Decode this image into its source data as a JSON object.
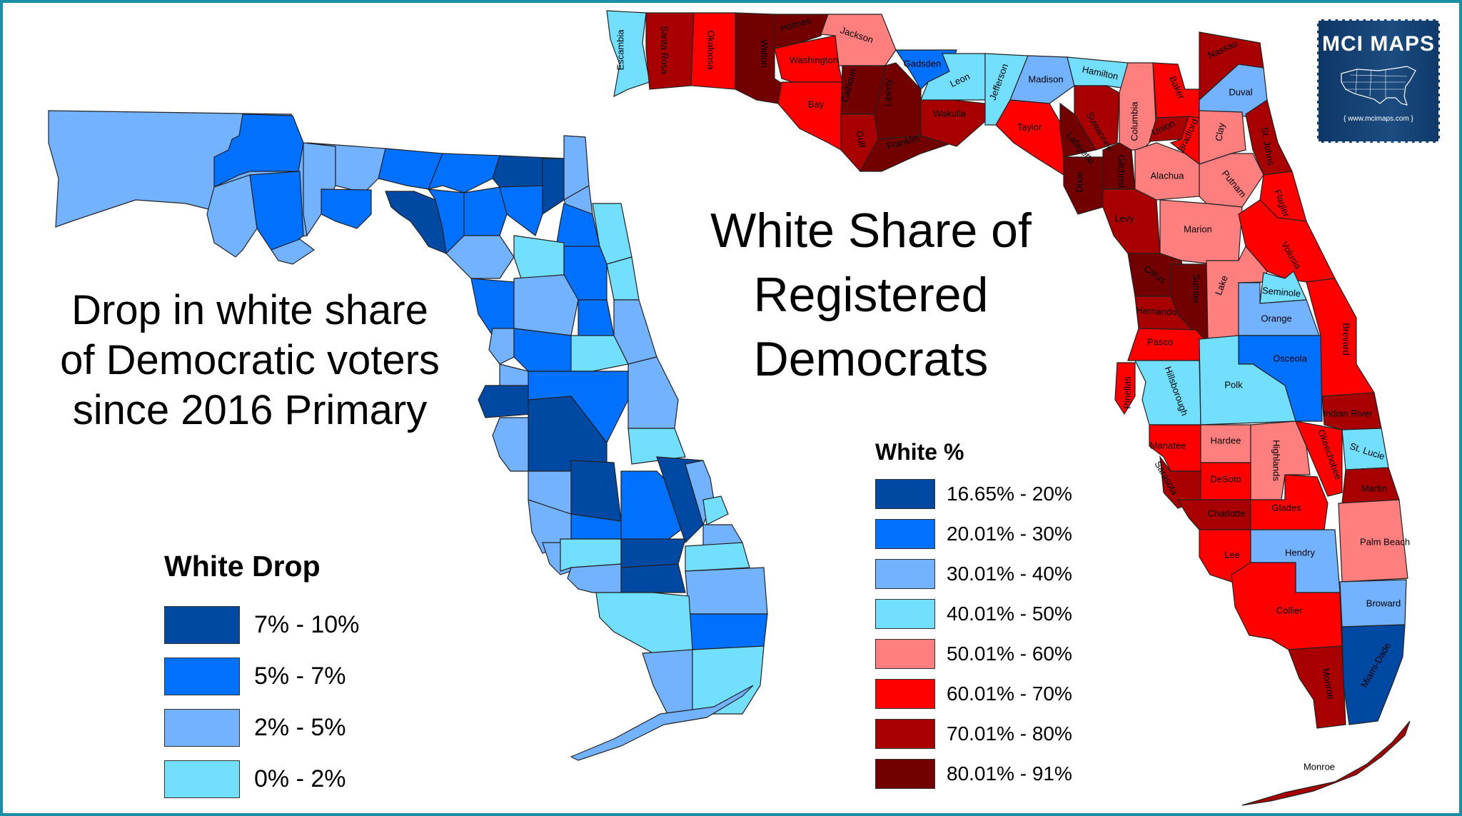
{
  "left_map": {
    "title": "Drop in white share of Democratic voters since 2016 Primary",
    "title_lines": [
      "Drop in white share",
      "of Democratic voters",
      "since 2016 Primary"
    ],
    "legend": {
      "title": "White Drop",
      "items": [
        {
          "label": "7% - 10%",
          "color": "#0049a3"
        },
        {
          "label": "5% - 7%",
          "color": "#0070ff"
        },
        {
          "label": "2% - 5%",
          "color": "#73b2ff"
        },
        {
          "label": "0% - 2%",
          "color": "#73dfff"
        }
      ]
    }
  },
  "right_map": {
    "title_lines": [
      "White Share of",
      "Registered",
      "Democrats"
    ],
    "legend": {
      "title": "White %",
      "items": [
        {
          "label": "16.65% - 20%",
          "color": "#0049a3"
        },
        {
          "label": "20.01% - 30%",
          "color": "#0070ff"
        },
        {
          "label": "30.01% - 40%",
          "color": "#73b2ff"
        },
        {
          "label": "40.01% - 50%",
          "color": "#73dfff"
        },
        {
          "label": "50.01% - 60%",
          "color": "#ff7f7f"
        },
        {
          "label": "60.01% - 70%",
          "color": "#ff0000"
        },
        {
          "label": "70.01% - 80%",
          "color": "#a80000"
        },
        {
          "label": "80.01% - 91%",
          "color": "#730000"
        }
      ]
    },
    "counties": [
      {
        "name": "Escambia",
        "bin": 3,
        "label": [
          870,
          70
        ],
        "rot": -90
      },
      {
        "name": "Santa Rosa",
        "bin": 6,
        "label": [
          930,
          70
        ],
        "rot": 90
      },
      {
        "name": "Okaloosa",
        "bin": 5,
        "label": [
          995,
          70
        ],
        "rot": 90
      },
      {
        "name": "Walton",
        "bin": 7,
        "label": [
          1070,
          75
        ],
        "rot": 90
      },
      {
        "name": "Holmes",
        "bin": 7,
        "label": [
          1115,
          35
        ],
        "rot": -15
      },
      {
        "name": "Jackson",
        "bin": 4,
        "label": [
          1200,
          50
        ],
        "rot": 18
      },
      {
        "name": "Washington",
        "bin": 5,
        "label": [
          1140,
          85
        ],
        "rot": 0
      },
      {
        "name": "Bay",
        "bin": 5,
        "label": [
          1143,
          147
        ],
        "rot": 0
      },
      {
        "name": "Calhoun",
        "bin": 7,
        "label": [
          1190,
          120
        ],
        "rot": -75
      },
      {
        "name": "Gulf",
        "bin": 6,
        "label": [
          1205,
          195
        ],
        "rot": 80
      },
      {
        "name": "Liberty",
        "bin": 7,
        "label": [
          1245,
          130
        ],
        "rot": -90
      },
      {
        "name": "Franklin",
        "bin": 7,
        "label": [
          1265,
          200
        ],
        "rot": -15
      },
      {
        "name": "Gadsden",
        "bin": 1,
        "label": [
          1292,
          90
        ],
        "rot": 0
      },
      {
        "name": "Wakulla",
        "bin": 6,
        "label": [
          1330,
          160
        ],
        "rot": 0
      },
      {
        "name": "Leon",
        "bin": 3,
        "label": [
          1345,
          113
        ],
        "rot": -25
      },
      {
        "name": "Jefferson",
        "bin": 3,
        "label": [
          1400,
          115
        ],
        "rot": -70
      },
      {
        "name": "Madison",
        "bin": 2,
        "label": [
          1465,
          112
        ],
        "rot": 0
      },
      {
        "name": "Taylor",
        "bin": 5,
        "label": [
          1442,
          179
        ],
        "rot": 0
      },
      {
        "name": "Hamilton",
        "bin": 3,
        "label": [
          1541,
          103
        ],
        "rot": 12
      },
      {
        "name": "Suwannee",
        "bin": 6,
        "label": [
          1540,
          185
        ],
        "rot": 60
      },
      {
        "name": "Lafayette",
        "bin": 7,
        "label": [
          1513,
          208
        ],
        "rot": 50
      },
      {
        "name": "Dixie",
        "bin": 7,
        "label": [
          1513,
          255
        ],
        "rot": -90
      },
      {
        "name": "Gilchrist",
        "bin": 7,
        "label": [
          1570,
          240
        ],
        "rot": 90
      },
      {
        "name": "Columbia",
        "bin": 4,
        "label": [
          1590,
          170
        ],
        "rot": -90
      },
      {
        "name": "Baker",
        "bin": 5,
        "label": [
          1648,
          123
        ],
        "rot": 65
      },
      {
        "name": "Union",
        "bin": 6,
        "label": [
          1630,
          180
        ],
        "rot": -25
      },
      {
        "name": "Bradford",
        "bin": 5,
        "label": [
          1665,
          190
        ],
        "rot": -65
      },
      {
        "name": "Nassau",
        "bin": 6,
        "label": [
          1713,
          70
        ],
        "rot": -25
      },
      {
        "name": "Duval",
        "bin": 2,
        "label": [
          1738,
          130
        ],
        "rot": 0
      },
      {
        "name": "Clay",
        "bin": 4,
        "label": [
          1710,
          185
        ],
        "rot": -80
      },
      {
        "name": "St. Johns",
        "bin": 6,
        "label": [
          1775,
          205
        ],
        "rot": 80
      },
      {
        "name": "Alachua",
        "bin": 4,
        "label": [
          1635,
          247
        ],
        "rot": 0
      },
      {
        "name": "Putnam",
        "bin": 4,
        "label": [
          1728,
          258
        ],
        "rot": 50
      },
      {
        "name": "Flagler",
        "bin": 5,
        "label": [
          1795,
          285
        ],
        "rot": 70
      },
      {
        "name": "Levy",
        "bin": 6,
        "label": [
          1575,
          307
        ],
        "rot": 0
      },
      {
        "name": "Marion",
        "bin": 4,
        "label": [
          1678,
          322
        ],
        "rot": 0
      },
      {
        "name": "Volusia",
        "bin": 5,
        "label": [
          1808,
          358
        ],
        "rot": 60
      },
      {
        "name": "Citrus",
        "bin": 7,
        "label": [
          1617,
          385
        ],
        "rot": 35
      },
      {
        "name": "Sumter",
        "bin": 7,
        "label": [
          1675,
          405
        ],
        "rot": 90
      },
      {
        "name": "Lake",
        "bin": 4,
        "label": [
          1712,
          400
        ],
        "rot": -70
      },
      {
        "name": "Seminole",
        "bin": 3,
        "label": [
          1795,
          410
        ],
        "rot": 5
      },
      {
        "name": "Hernando",
        "bin": 6,
        "label": [
          1620,
          437
        ],
        "rot": 3
      },
      {
        "name": "Orange",
        "bin": 2,
        "label": [
          1788,
          447
        ],
        "rot": 0
      },
      {
        "name": "Brevard",
        "bin": 5,
        "label": [
          1885,
          475
        ],
        "rot": 90
      },
      {
        "name": "Pasco",
        "bin": 5,
        "label": [
          1625,
          480
        ],
        "rot": 0
      },
      {
        "name": "Osceola",
        "bin": 1,
        "label": [
          1807,
          503
        ],
        "rot": 0
      },
      {
        "name": "Pinellas",
        "bin": 5,
        "label": [
          1580,
          550
        ],
        "rot": -90
      },
      {
        "name": "Hillsborough",
        "bin": 3,
        "label": [
          1647,
          548
        ],
        "rot": 70
      },
      {
        "name": "Polk",
        "bin": 3,
        "label": [
          1728,
          540
        ],
        "rot": 0
      },
      {
        "name": "Indian River",
        "bin": 6,
        "label": [
          1888,
          580
        ],
        "rot": 0
      },
      {
        "name": "Manatee",
        "bin": 5,
        "label": [
          1636,
          625
        ],
        "rot": 0
      },
      {
        "name": "Hardee",
        "bin": 4,
        "label": [
          1717,
          618
        ],
        "rot": 0
      },
      {
        "name": "Highlands",
        "bin": 4,
        "label": [
          1787,
          645
        ],
        "rot": 90
      },
      {
        "name": "Okeechobee",
        "bin": 5,
        "label": [
          1862,
          637
        ],
        "rot": 70
      },
      {
        "name": "St. Lucie",
        "bin": 3,
        "label": [
          1915,
          633
        ],
        "rot": 18
      },
      {
        "name": "Sarasota",
        "bin": 6,
        "label": [
          1633,
          670
        ],
        "rot": 60
      },
      {
        "name": "DeSoto",
        "bin": 5,
        "label": [
          1717,
          672
        ],
        "rot": 0
      },
      {
        "name": "Martin",
        "bin": 6,
        "label": [
          1925,
          685
        ],
        "rot": 0
      },
      {
        "name": "Charlotte",
        "bin": 6,
        "label": [
          1718,
          720
        ],
        "rot": 0
      },
      {
        "name": "Glades",
        "bin": 5,
        "label": [
          1802,
          712
        ],
        "rot": 0
      },
      {
        "name": "Palm Beach",
        "bin": 4,
        "label": [
          1940,
          760
        ],
        "rot": 0
      },
      {
        "name": "Lee",
        "bin": 5,
        "label": [
          1726,
          778
        ],
        "rot": 0
      },
      {
        "name": "Hendry",
        "bin": 2,
        "label": [
          1821,
          775
        ],
        "rot": 0
      },
      {
        "name": "Broward",
        "bin": 2,
        "label": [
          1938,
          846
        ],
        "rot": 0
      },
      {
        "name": "Collier",
        "bin": 5,
        "label": [
          1806,
          856
        ],
        "rot": 0
      },
      {
        "name": "Miami-Dade",
        "bin": 0,
        "label": [
          1928,
          932
        ],
        "rot": -60
      },
      {
        "name": "Monroe",
        "bin": 6,
        "label": [
          1860,
          958
        ],
        "rot": 80
      },
      {
        "name": "Monroe",
        "bin": 6,
        "label": [
          1848,
          1075
        ],
        "rot": 0,
        "keys": true
      }
    ]
  },
  "logo": {
    "brand": "MCI MAPS",
    "url": "{ www.mcimaps.com }"
  },
  "chart_data": [
    {
      "type": "choropleth",
      "title": "Drop in white share of Democratic voters since 2016 Primary",
      "legend_title": "White Drop",
      "bins": [
        "7% - 10%",
        "5% - 7%",
        "2% - 5%",
        "0% - 2%"
      ]
    },
    {
      "type": "choropleth",
      "title": "White Share of Registered Democrats",
      "legend_title": "White %",
      "bins": [
        "16.65% - 20%",
        "20.01% - 30%",
        "30.01% - 40%",
        "40.01% - 50%",
        "50.01% - 60%",
        "60.01% - 70%",
        "70.01% - 80%",
        "80.01% - 91%"
      ],
      "county_bins": {
        "Escambia": "40.01% - 50%",
        "Santa Rosa": "70.01% - 80%",
        "Okaloosa": "60.01% - 70%",
        "Walton": "80.01% - 91%",
        "Holmes": "80.01% - 91%",
        "Jackson": "50.01% - 60%",
        "Washington": "60.01% - 70%",
        "Bay": "60.01% - 70%",
        "Calhoun": "80.01% - 91%",
        "Gulf": "70.01% - 80%",
        "Liberty": "80.01% - 91%",
        "Franklin": "80.01% - 91%",
        "Gadsden": "20.01% - 30%",
        "Wakulla": "70.01% - 80%",
        "Leon": "40.01% - 50%",
        "Jefferson": "40.01% - 50%",
        "Madison": "30.01% - 40%",
        "Taylor": "60.01% - 70%",
        "Hamilton": "40.01% - 50%",
        "Suwannee": "70.01% - 80%",
        "Lafayette": "80.01% - 91%",
        "Dixie": "80.01% - 91%",
        "Gilchrist": "80.01% - 91%",
        "Columbia": "50.01% - 60%",
        "Baker": "60.01% - 70%",
        "Union": "70.01% - 80%",
        "Bradford": "60.01% - 70%",
        "Nassau": "70.01% - 80%",
        "Duval": "30.01% - 40%",
        "Clay": "50.01% - 60%",
        "St. Johns": "70.01% - 80%",
        "Alachua": "50.01% - 60%",
        "Putnam": "50.01% - 60%",
        "Flagler": "60.01% - 70%",
        "Levy": "70.01% - 80%",
        "Marion": "50.01% - 60%",
        "Volusia": "60.01% - 70%",
        "Citrus": "80.01% - 91%",
        "Sumter": "80.01% - 91%",
        "Lake": "50.01% - 60%",
        "Seminole": "40.01% - 50%",
        "Hernando": "70.01% - 80%",
        "Orange": "30.01% - 40%",
        "Brevard": "60.01% - 70%",
        "Pasco": "60.01% - 70%",
        "Osceola": "20.01% - 30%",
        "Pinellas": "60.01% - 70%",
        "Hillsborough": "40.01% - 50%",
        "Polk": "40.01% - 50%",
        "Indian River": "70.01% - 80%",
        "Manatee": "60.01% - 70%",
        "Hardee": "50.01% - 60%",
        "Highlands": "50.01% - 60%",
        "Okeechobee": "60.01% - 70%",
        "St. Lucie": "40.01% - 50%",
        "Sarasota": "70.01% - 80%",
        "DeSoto": "60.01% - 70%",
        "Martin": "70.01% - 80%",
        "Charlotte": "70.01% - 80%",
        "Glades": "60.01% - 70%",
        "Palm Beach": "50.01% - 60%",
        "Lee": "60.01% - 70%",
        "Hendry": "30.01% - 40%",
        "Broward": "30.01% - 40%",
        "Collier": "60.01% - 70%",
        "Miami-Dade": "16.65% - 20%",
        "Monroe": "70.01% - 80%"
      }
    }
  ]
}
